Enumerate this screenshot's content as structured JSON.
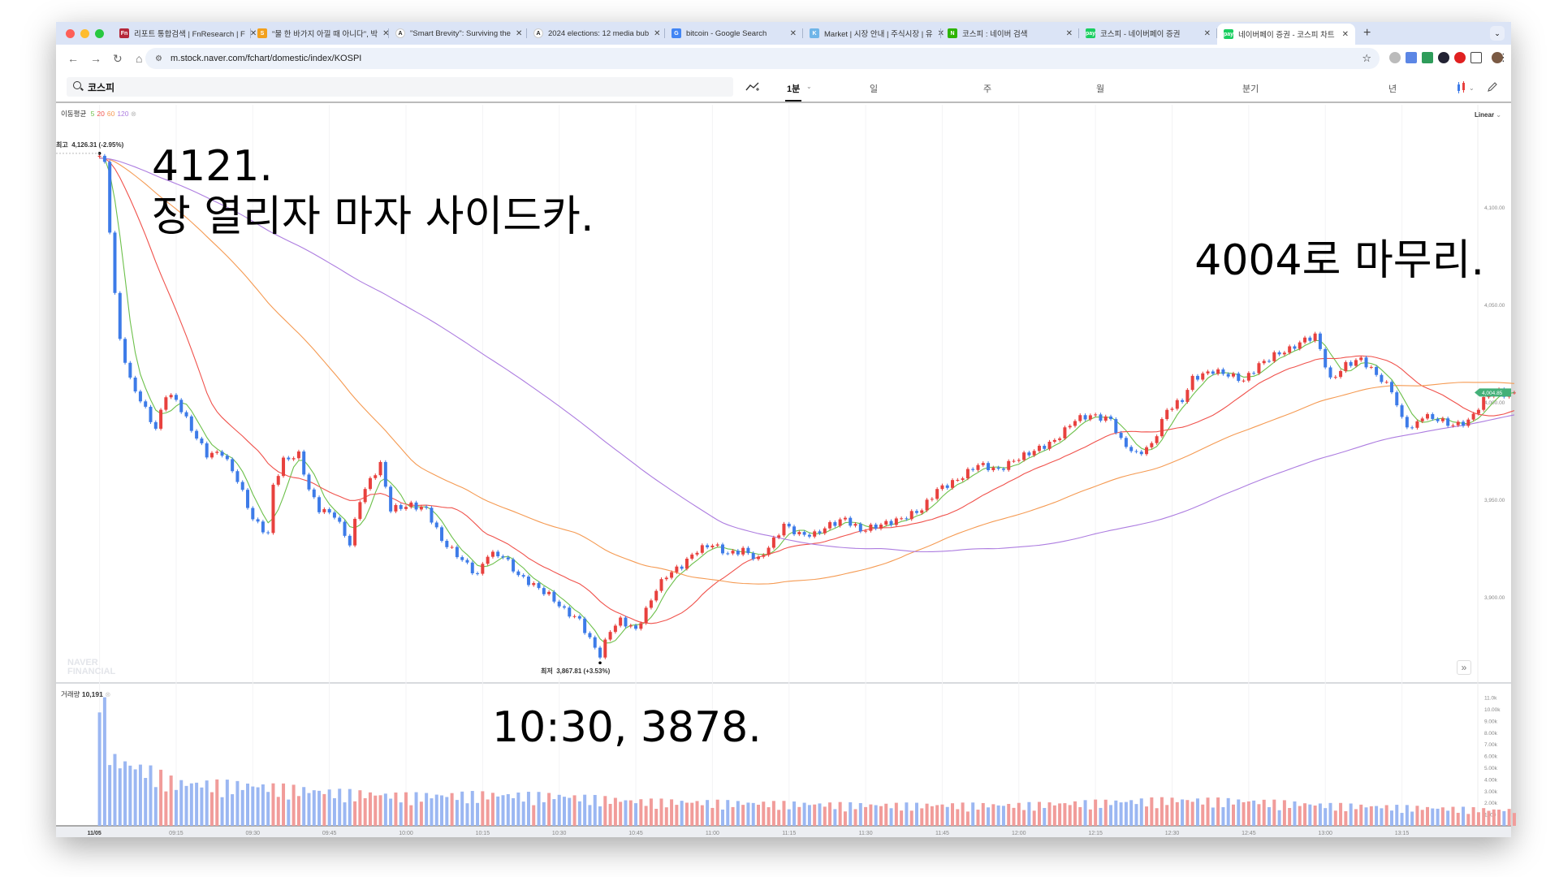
{
  "browser": {
    "tabs": [
      {
        "label": "리포트 통합검색 | FnResearch | F",
        "icon": "Fn",
        "color": "#b5273a"
      },
      {
        "label": "\"물 한 바가지 아낄 때 아니다\", 박",
        "icon": "S",
        "color": "#f2a01d"
      },
      {
        "label": "\"Smart Brevity\": Surviving the",
        "icon": "A",
        "color": "#ffffff"
      },
      {
        "label": "2024 elections: 12 media bub",
        "icon": "A",
        "color": "#ffffff"
      },
      {
        "label": "bitcoin - Google Search",
        "icon": "G",
        "color": "#4285f4"
      },
      {
        "label": "Market | 시장 안내 | 주식시장 | 유",
        "icon": "K",
        "color": "#6fb5e8"
      },
      {
        "label": "코스피 : 네이버 검색",
        "icon": "N",
        "color": "#2db400"
      },
      {
        "label": "코스피 - 네이버페이 증권",
        "icon": "pay",
        "color": "#19ce60"
      },
      {
        "label": "네이버페이 증권 - 코스피 차트",
        "icon": "pay",
        "color": "#19ce60",
        "active": true
      }
    ],
    "url": "m.stock.naver.com/fchart/domestic/index/KOSPI"
  },
  "toolbar": {
    "search_value": "코스피",
    "periods": [
      {
        "label": "1분",
        "selected": true
      },
      {
        "label": "일"
      },
      {
        "label": "주"
      },
      {
        "label": "월"
      },
      {
        "label": "분기"
      },
      {
        "label": "년"
      }
    ]
  },
  "chart": {
    "ma_label": "이동평균",
    "ma_periods": [
      {
        "label": "5",
        "color": "#6cc04a"
      },
      {
        "label": "20",
        "color": "#f0524c"
      },
      {
        "label": "60",
        "color": "#f59a52"
      },
      {
        "label": "120",
        "color": "#ad7de0"
      }
    ],
    "scale_mode": "Linear",
    "high_label": "최고",
    "high_value": "4,126.31 (-2.95%)",
    "low_label": "최저",
    "low_value": "3,867.81 (+3.53%)",
    "current_price": "4,004.85",
    "watermark": "NAVER FINANCIAL",
    "volume_label": "거래량",
    "volume_value": "10,191",
    "up_color": "#e8413e",
    "down_color": "#3d7be8",
    "current_color": "#43b078"
  },
  "annotations": {
    "open_price": "4121.",
    "open_note": "장 열리자 마자 사이드카.",
    "close_note": "4004로 마무리.",
    "low_note": "10:30, 3878."
  },
  "chart_data": {
    "type": "candlestick",
    "interval": "1 minute",
    "date": "11/05",
    "y_ticks": [
      "4,100.00",
      "4,050.00",
      "4,000.00",
      "3,950.00",
      "3,900.00"
    ],
    "y_tick_values": [
      4100,
      4050,
      4000,
      3950,
      3900
    ],
    "volume_ticks": [
      "11.0k",
      "10.00k",
      "9.00k",
      "8.00k",
      "7.00k",
      "6.00k",
      "5.00k",
      "4.00k",
      "3.00k",
      "2.00k",
      "1000"
    ],
    "volume_tick_values": [
      11000,
      10000,
      9000,
      8000,
      7000,
      6000,
      5000,
      4000,
      3000,
      2000,
      1000
    ],
    "x_ticks": [
      "11/05",
      "09:15",
      "09:30",
      "09:45",
      "10:00",
      "10:15",
      "10:30",
      "10:45",
      "11:00",
      "11:15",
      "11:30",
      "11:45",
      "12:00",
      "12:15",
      "12:30",
      "12:45",
      "13:00",
      "13:15"
    ],
    "price_path": [
      [
        "09:00",
        4126.3
      ],
      [
        "09:01",
        4122
      ],
      [
        "09:03",
        4055
      ],
      [
        "09:04",
        4032
      ],
      [
        "09:06",
        4011
      ],
      [
        "09:09",
        3996
      ],
      [
        "09:11",
        3986
      ],
      [
        "09:13",
        4004
      ],
      [
        "09:15",
        4001
      ],
      [
        "09:18",
        3986
      ],
      [
        "09:21",
        3973
      ],
      [
        "09:24",
        3974
      ],
      [
        "09:27",
        3960
      ],
      [
        "09:30",
        3940
      ],
      [
        "09:33",
        3932
      ],
      [
        "09:34",
        3957
      ],
      [
        "09:36",
        3970
      ],
      [
        "09:39",
        3973
      ],
      [
        "09:41",
        3955
      ],
      [
        "09:43",
        3945
      ],
      [
        "09:46",
        3942
      ],
      [
        "09:49",
        3927
      ],
      [
        "09:51",
        3950
      ],
      [
        "09:53",
        3960
      ],
      [
        "09:55",
        3968
      ],
      [
        "09:57",
        3945
      ],
      [
        "10:01",
        3947
      ],
      [
        "10:04",
        3945
      ],
      [
        "10:07",
        3929
      ],
      [
        "10:11",
        3919
      ],
      [
        "10:14",
        3911
      ],
      [
        "10:16",
        3922
      ],
      [
        "10:19",
        3921
      ],
      [
        "10:22",
        3911
      ],
      [
        "10:25",
        3906
      ],
      [
        "10:28",
        3901
      ],
      [
        "10:31",
        3893
      ],
      [
        "10:34",
        3888
      ],
      [
        "10:36",
        3878
      ],
      [
        "10:38",
        3870
      ],
      [
        "10:40",
        3883
      ],
      [
        "10:42",
        3888
      ],
      [
        "10:45",
        3883
      ],
      [
        "10:47",
        3893
      ],
      [
        "10:49",
        3904
      ],
      [
        "10:51",
        3911
      ],
      [
        "10:54",
        3916
      ],
      [
        "10:57",
        3924
      ],
      [
        "11:00",
        3927
      ],
      [
        "11:03",
        3922
      ],
      [
        "11:06",
        3924
      ],
      [
        "11:09",
        3919
      ],
      [
        "11:12",
        3929
      ],
      [
        "11:14",
        3937
      ],
      [
        "11:17",
        3932
      ],
      [
        "11:20",
        3932
      ],
      [
        "11:23",
        3937
      ],
      [
        "11:26",
        3940
      ],
      [
        "11:29",
        3934
      ],
      [
        "11:33",
        3937
      ],
      [
        "11:37",
        3940
      ],
      [
        "11:41",
        3945
      ],
      [
        "11:44",
        3955
      ],
      [
        "11:48",
        3960
      ],
      [
        "11:52",
        3968
      ],
      [
        "11:56",
        3965
      ],
      [
        "11:59",
        3970
      ],
      [
        "12:03",
        3975
      ],
      [
        "12:07",
        3980
      ],
      [
        "12:11",
        3991
      ],
      [
        "12:14",
        3993
      ],
      [
        "12:18",
        3991
      ],
      [
        "12:20",
        3980
      ],
      [
        "12:23",
        3973
      ],
      [
        "12:26",
        3978
      ],
      [
        "12:29",
        3996
      ],
      [
        "12:32",
        4001
      ],
      [
        "12:34",
        4012
      ],
      [
        "12:38",
        4016
      ],
      [
        "12:41",
        4014
      ],
      [
        "12:44",
        4011
      ],
      [
        "12:47",
        4019
      ],
      [
        "12:50",
        4024
      ],
      [
        "12:53",
        4027
      ],
      [
        "12:56",
        4032
      ],
      [
        "12:58",
        4034
      ],
      [
        "12:59",
        4027
      ],
      [
        "13:01",
        4011
      ],
      [
        "13:04",
        4019
      ],
      [
        "13:07",
        4022
      ],
      [
        "13:10",
        4014
      ],
      [
        "13:13",
        4006
      ],
      [
        "13:15",
        3991
      ],
      [
        "13:17",
        3986
      ],
      [
        "13:19",
        3993
      ],
      [
        "13:22",
        3991
      ],
      [
        "13:25",
        3988
      ],
      [
        "13:28",
        3990
      ],
      [
        "13:31",
        4001
      ],
      [
        "13:33",
        4006
      ],
      [
        "13:35",
        4004
      ],
      [
        "13:37",
        4004.85
      ]
    ],
    "volume_path": [
      [
        "09:00",
        9700
      ],
      [
        "09:01",
        11000
      ],
      [
        "09:02",
        5200
      ],
      [
        "09:05",
        4800
      ],
      [
        "09:10",
        4200
      ],
      [
        "09:15",
        3300
      ],
      [
        "09:30",
        3100
      ],
      [
        "09:45",
        2600
      ],
      [
        "10:00",
        2300
      ],
      [
        "10:15",
        2400
      ],
      [
        "10:30",
        2300
      ],
      [
        "10:45",
        1900
      ],
      [
        "11:00",
        1800
      ],
      [
        "11:30",
        1600
      ],
      [
        "12:00",
        1600
      ],
      [
        "12:30",
        2000
      ],
      [
        "12:45",
        1900
      ],
      [
        "13:00",
        1600
      ],
      [
        "13:37",
        1200
      ]
    ]
  }
}
